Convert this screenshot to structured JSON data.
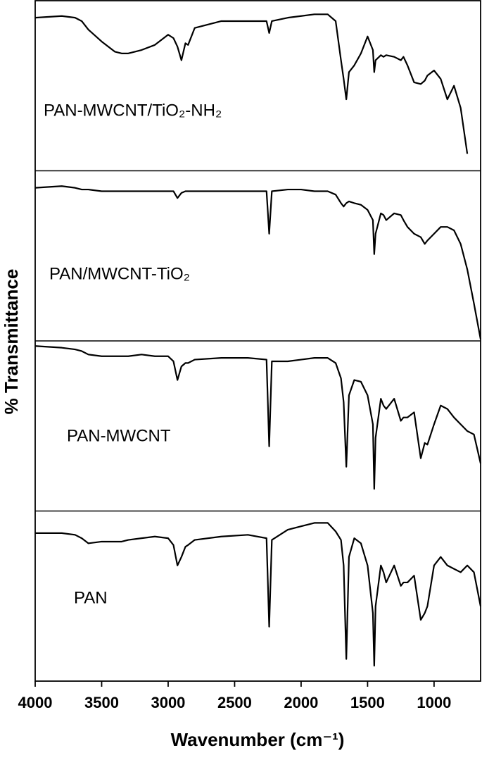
{
  "chart_data": {
    "type": "line",
    "panels": true,
    "xlabel": "Wavenumber (cm⁻¹)",
    "ylabel": "% Transmittance",
    "xlim": [
      4000,
      650
    ],
    "xticks": [
      4000,
      3500,
      3000,
      2500,
      2000,
      1500,
      1000
    ],
    "ylim": [
      0,
      100
    ],
    "x": [
      4000,
      3800,
      3700,
      3650,
      3600,
      3500,
      3400,
      3350,
      3300,
      3200,
      3100,
      3000,
      2960,
      2930,
      2900,
      2870,
      2850,
      2800,
      2600,
      2400,
      2260,
      2240,
      2220,
      2100,
      2000,
      1900,
      1800,
      1740,
      1700,
      1680,
      1660,
      1640,
      1600,
      1550,
      1500,
      1460,
      1450,
      1440,
      1400,
      1380,
      1360,
      1300,
      1250,
      1230,
      1200,
      1150,
      1100,
      1070,
      1050,
      1000,
      950,
      900,
      850,
      800,
      750,
      700,
      650
    ],
    "series": [
      {
        "name": "PAN-MWCNT/TiO₂-NH₂",
        "color": "#000000",
        "values": [
          90,
          91,
          90,
          88,
          83,
          76,
          70,
          69,
          69,
          71,
          74,
          80,
          78,
          73,
          65,
          75,
          74,
          84,
          88,
          88,
          88,
          81,
          88,
          90,
          91,
          92,
          92,
          88,
          65,
          54,
          42,
          58,
          62,
          69,
          79,
          71,
          58,
          65,
          68,
          67,
          68,
          67,
          65,
          67,
          62,
          52,
          51,
          53,
          56,
          59,
          54,
          42,
          50,
          37,
          10,
          null,
          null
        ]
      },
      {
        "name": "PAN/MWCNT-TiO₂",
        "color": "#000000",
        "values": [
          90,
          91,
          90,
          89,
          89,
          88,
          88,
          88,
          88,
          88,
          88,
          88,
          88,
          84,
          87,
          88,
          88,
          88,
          88,
          88,
          88,
          63,
          88,
          89,
          89,
          88,
          88,
          86,
          81,
          79,
          81,
          82,
          81,
          80,
          77,
          71,
          51,
          63,
          75,
          74,
          71,
          75,
          74,
          71,
          67,
          63,
          61,
          57,
          59,
          63,
          67,
          67,
          65,
          57,
          42,
          22,
          1
        ]
      },
      {
        "name": "PAN-MWCNT",
        "color": "#000000",
        "values": [
          97,
          96,
          95,
          94,
          92,
          91,
          91,
          91,
          91,
          92,
          91,
          91,
          88,
          77,
          85,
          87,
          87,
          89,
          90,
          90,
          89,
          38,
          88,
          88,
          89,
          90,
          90,
          87,
          78,
          64,
          26,
          68,
          77,
          76,
          68,
          51,
          13,
          43,
          66,
          62,
          60,
          66,
          53,
          55,
          55,
          58,
          31,
          40,
          39,
          51,
          62,
          60,
          55,
          51,
          47,
          45,
          28
        ]
      },
      {
        "name": "PAN",
        "color": "#000000",
        "values": [
          87,
          87,
          86,
          84,
          81,
          82,
          82,
          82,
          83,
          84,
          85,
          84,
          80,
          68,
          73,
          79,
          80,
          83,
          85,
          86,
          84,
          32,
          83,
          89,
          91,
          93,
          93,
          88,
          83,
          68,
          13,
          73,
          84,
          81,
          68,
          40,
          9,
          44,
          68,
          64,
          58,
          68,
          56,
          58,
          58,
          62,
          36,
          40,
          44,
          68,
          73,
          68,
          66,
          64,
          68,
          64,
          44
        ]
      }
    ]
  }
}
